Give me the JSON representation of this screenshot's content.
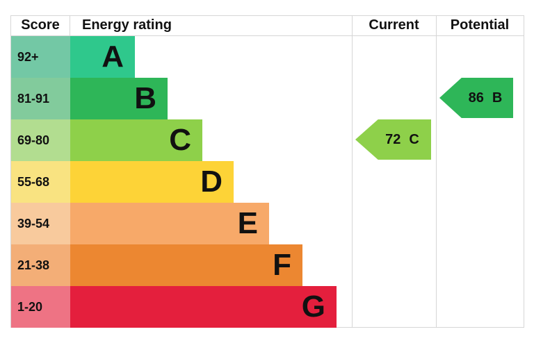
{
  "header": {
    "score": "Score",
    "energy_rating": "Energy rating",
    "current": "Current",
    "potential": "Potential"
  },
  "chart_data": {
    "type": "bar",
    "variant": "epc-energy-rating-chart",
    "title": "Energy rating",
    "columns": [
      "Score",
      "Energy rating",
      "Current",
      "Potential"
    ],
    "bands": [
      {
        "letter": "A",
        "score_range": "92+",
        "bar_color": "#2fc88c",
        "cell_color": "#73c8a5"
      },
      {
        "letter": "B",
        "score_range": "81-91",
        "bar_color": "#2eb658",
        "cell_color": "#82cb9c"
      },
      {
        "letter": "C",
        "score_range": "69-80",
        "bar_color": "#8ed04a",
        "cell_color": "#b2dd90"
      },
      {
        "letter": "D",
        "score_range": "55-68",
        "bar_color": "#fdd337",
        "cell_color": "#f9e381"
      },
      {
        "letter": "E",
        "score_range": "39-54",
        "bar_color": "#f7a969",
        "cell_color": "#f8ca9d"
      },
      {
        "letter": "F",
        "score_range": "21-38",
        "bar_color": "#ec8731",
        "cell_color": "#f3ae77"
      },
      {
        "letter": "G",
        "score_range": "1-20",
        "bar_color": "#e41f3d",
        "cell_color": "#ee7384"
      }
    ],
    "current": {
      "value": "72",
      "band": "C",
      "color": "#8ed04a"
    },
    "potential": {
      "value": "86",
      "band": "B",
      "color": "#2eb658"
    },
    "layout": {
      "border_color": "#d6d6d6",
      "legend_position": "none",
      "grid": "off"
    }
  }
}
